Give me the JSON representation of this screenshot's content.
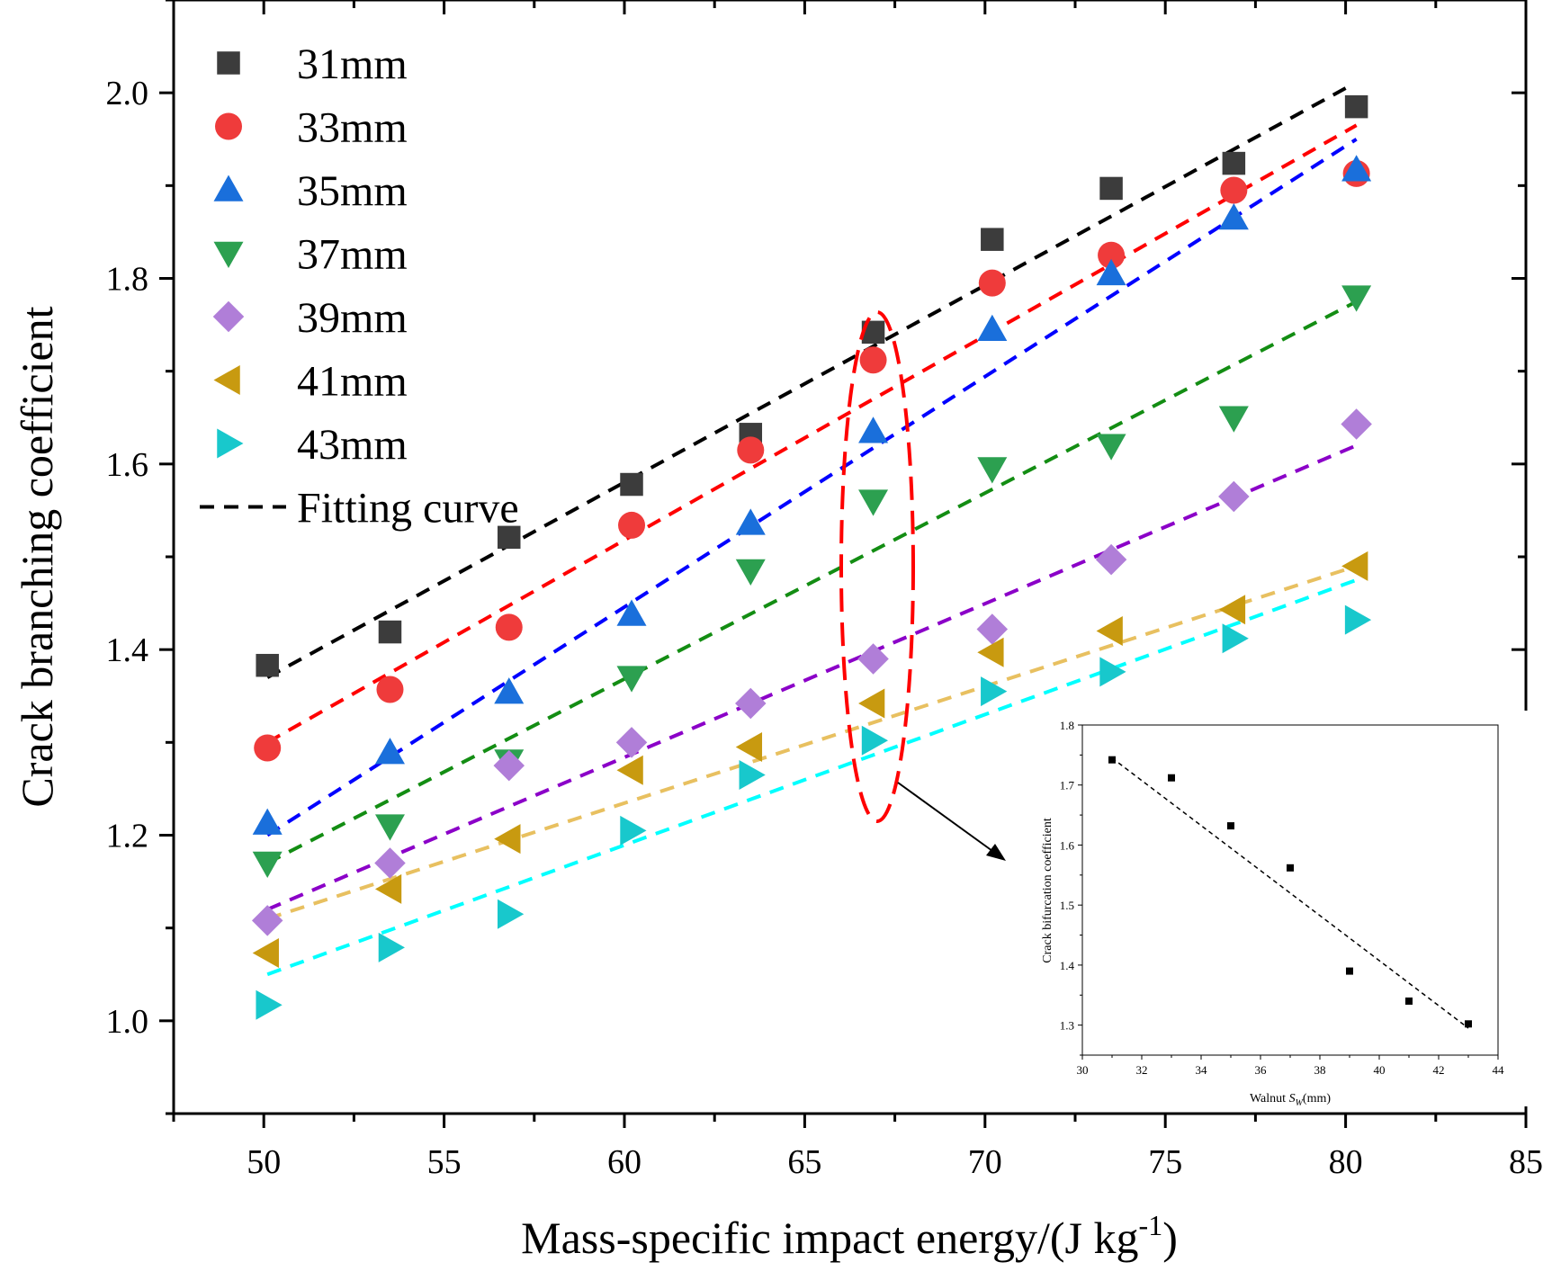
{
  "chart_data": {
    "type": "scatter",
    "title": "",
    "xlabel": "Mass-specific impact energy/(J kg",
    "xlabel_sup": "-1",
    "xlabel_end": ")",
    "ylabel": "Crack branching coefficient",
    "xlim": [
      47.5,
      85
    ],
    "ylim": [
      0.9,
      2.1
    ],
    "xticks": [
      50,
      55,
      60,
      65,
      70,
      75,
      80,
      85
    ],
    "xtick_labels": [
      "50",
      "55",
      "60",
      "65",
      "70",
      "75",
      "80",
      "85"
    ],
    "yticks": [
      1.0,
      1.2,
      1.4,
      1.6,
      1.8,
      2.0
    ],
    "ytick_labels": [
      "1.0",
      "1.2",
      "1.4",
      "1.6",
      "1.8",
      "2.0"
    ],
    "grid": false,
    "legend_position": "top-left",
    "x": [
      50.1,
      53.5,
      56.8,
      60.2,
      63.5,
      66.9,
      70.2,
      73.5,
      76.9,
      80.3
    ],
    "series": [
      {
        "name": "31mm",
        "marker": "square",
        "color": "#3c3c3c",
        "fit_color": "#000000",
        "values": [
          1.383,
          1.419,
          1.521,
          1.578,
          1.632,
          1.742,
          1.842,
          1.897,
          1.924,
          1.985
        ],
        "fit": [
          [
            50.1,
            1.37
          ],
          [
            80.0,
            2.005
          ]
        ]
      },
      {
        "name": "33mm",
        "marker": "circle",
        "color": "#ef3b3b",
        "fit_color": "#ff0000",
        "values": [
          1.294,
          1.357,
          1.424,
          1.534,
          1.615,
          1.712,
          1.795,
          1.825,
          1.895,
          1.913
        ],
        "fit": [
          [
            50.1,
            1.3
          ],
          [
            80.3,
            1.965
          ]
        ]
      },
      {
        "name": "35mm",
        "marker": "triangle-up",
        "color": "#1a6fdb",
        "fit_color": "#0000ff",
        "values": [
          1.213,
          1.289,
          1.354,
          1.438,
          1.536,
          1.635,
          1.745,
          1.805,
          1.865,
          1.917
        ],
        "fit": [
          [
            50.1,
            1.2
          ],
          [
            80.3,
            1.95
          ]
        ]
      },
      {
        "name": "37mm",
        "marker": "triangle-down",
        "color": "#2ca050",
        "fit_color": "#138d13",
        "values": [
          1.17,
          1.21,
          1.28,
          1.37,
          1.485,
          1.56,
          1.595,
          1.62,
          1.65,
          1.78
        ],
        "fit": [
          [
            50.1,
            1.17
          ],
          [
            80.3,
            1.775
          ]
        ]
      },
      {
        "name": "39mm",
        "marker": "diamond",
        "color": "#b07ed8",
        "fit_color": "#8b00c8",
        "values": [
          1.108,
          1.17,
          1.275,
          1.3,
          1.342,
          1.39,
          1.422,
          1.497,
          1.565,
          1.643
        ],
        "fit": [
          [
            50.1,
            1.12
          ],
          [
            80.3,
            1.62
          ]
        ]
      },
      {
        "name": "41mm",
        "marker": "triangle-left",
        "color": "#c89a10",
        "fit_color": "#e8c060",
        "values": [
          1.073,
          1.142,
          1.196,
          1.27,
          1.295,
          1.342,
          1.397,
          1.42,
          1.443,
          1.49
        ],
        "fit": [
          [
            50.1,
            1.11
          ],
          [
            80.3,
            1.49
          ]
        ]
      },
      {
        "name": "43mm",
        "marker": "triangle-right",
        "color": "#18c8cc",
        "fit_color": "#00ffff",
        "values": [
          1.017,
          1.079,
          1.115,
          1.205,
          1.265,
          1.302,
          1.355,
          1.376,
          1.412,
          1.432
        ],
        "fit": [
          [
            50.1,
            1.05
          ],
          [
            80.3,
            1.475
          ]
        ]
      }
    ],
    "fitting_curve_label": "Fitting curve",
    "highlight_x": 66.9,
    "inset": {
      "type": "scatter",
      "xlabel": "Walnut ",
      "xlabel_sub_letter": "S",
      "xlabel_sub": "W",
      "xlabel_end": "(mm)",
      "ylabel": "Crack bifurcation coefficient",
      "xlim": [
        30,
        44
      ],
      "ylim": [
        1.25,
        1.8
      ],
      "xticks": [
        30,
        32,
        34,
        36,
        38,
        40,
        42,
        44
      ],
      "xtick_labels": [
        "30",
        "32",
        "34",
        "36",
        "38",
        "40",
        "42",
        "44"
      ],
      "yticks": [
        1.3,
        1.4,
        1.5,
        1.6,
        1.7,
        1.8
      ],
      "ytick_labels": [
        "1.3",
        "1.4",
        "1.5",
        "1.6",
        "1.7",
        "1.8"
      ],
      "x": [
        31,
        33,
        35,
        37,
        39,
        41,
        43
      ],
      "y": [
        1.742,
        1.712,
        1.632,
        1.562,
        1.39,
        1.34,
        1.302
      ],
      "fit": [
        [
          31,
          1.745
        ],
        [
          43,
          1.295
        ]
      ]
    }
  }
}
